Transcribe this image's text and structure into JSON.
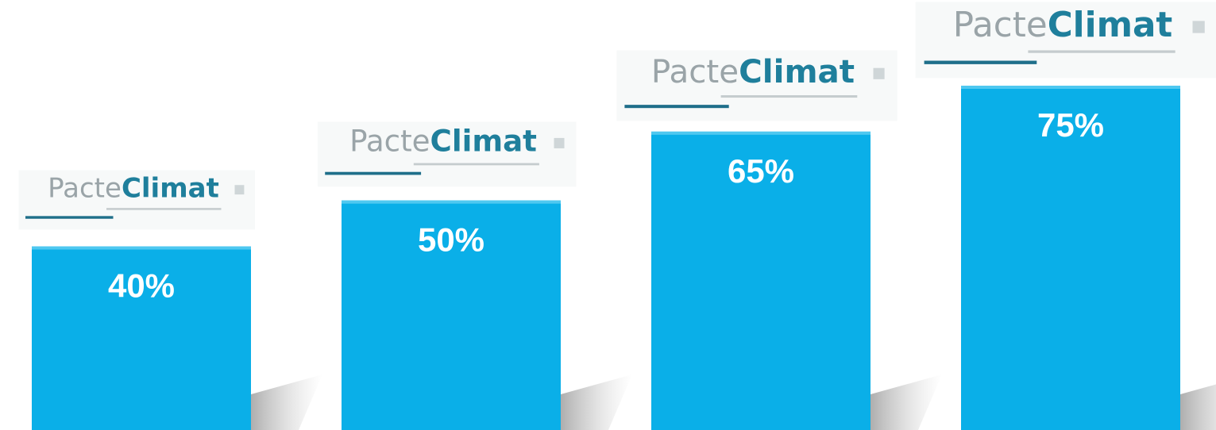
{
  "chart_data": {
    "type": "bar",
    "logo": [
      "Pacte",
      "Climat"
    ],
    "categories": [
      null,
      null,
      null,
      null
    ],
    "values": [
      40,
      50,
      65,
      75
    ],
    "value_labels": [
      "40%",
      "50%",
      "65%",
      "75%"
    ],
    "color": "#0aafe8"
  }
}
